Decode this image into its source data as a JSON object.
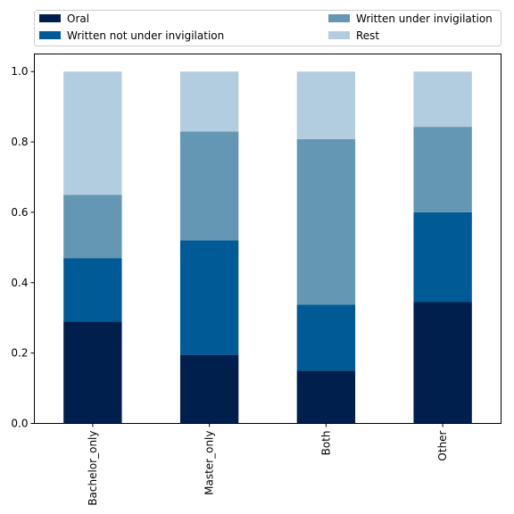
{
  "chart_data": {
    "type": "bar",
    "stacked": true,
    "categories": [
      "Bachelor_only",
      "Master_only",
      "Both",
      "Other"
    ],
    "series": [
      {
        "name": "Oral",
        "color": "#001f4d",
        "values": [
          0.29,
          0.195,
          0.15,
          0.345
        ]
      },
      {
        "name": "Written not under invigilation",
        "color": "#005a96",
        "values": [
          0.18,
          0.325,
          0.188,
          0.255
        ]
      },
      {
        "name": "Written under invigilation",
        "color": "#6497b4",
        "values": [
          0.18,
          0.31,
          0.47,
          0.243
        ]
      },
      {
        "name": "Rest",
        "color": "#b3cde0",
        "values": [
          0.35,
          0.17,
          0.192,
          0.157
        ]
      }
    ],
    "ylim": [
      0,
      1.05
    ],
    "yticks": [
      "0.0",
      "0.2",
      "0.4",
      "0.6",
      "0.8",
      "1.0"
    ],
    "legend": "top",
    "grid": false
  }
}
